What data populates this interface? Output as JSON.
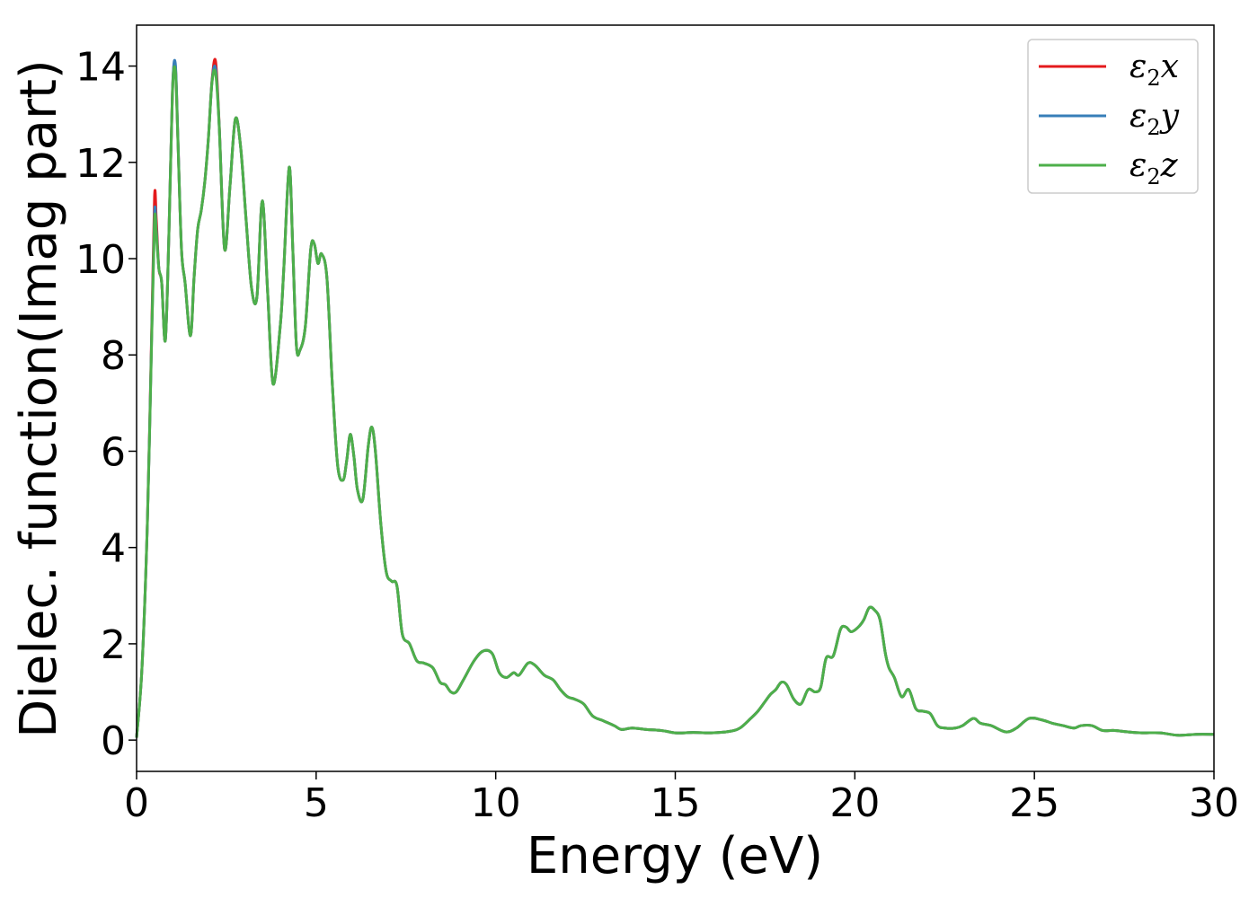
{
  "chart_data": {
    "type": "line",
    "title": "",
    "xlabel": "Energy (eV)",
    "ylabel": "Dielec. function(Imag part)",
    "xlim": [
      0,
      30
    ],
    "ylim": [
      -0.65,
      14.85
    ],
    "xticks": [
      0,
      5,
      10,
      15,
      20,
      25,
      30
    ],
    "yticks": [
      0,
      2,
      4,
      6,
      8,
      10,
      12,
      14
    ],
    "grid": false,
    "legend_position": "top-right",
    "series": [
      {
        "name": "ε₂x",
        "legend_parts": [
          "ε",
          "2",
          "x"
        ],
        "color": "#e41a1c",
        "x": [
          0,
          0.15,
          0.3,
          0.42,
          0.5,
          0.55,
          0.62,
          0.7,
          0.8,
          0.9,
          1.0,
          1.08,
          1.15,
          1.25,
          1.35,
          1.5,
          1.6,
          1.7,
          1.8,
          1.9,
          2.0,
          2.1,
          2.2,
          2.3,
          2.45,
          2.6,
          2.75,
          2.9,
          3.05,
          3.2,
          3.35,
          3.5,
          3.65,
          3.8,
          4.0,
          4.1,
          4.25,
          4.35,
          4.45,
          4.55,
          4.7,
          4.85,
          4.95,
          5.05,
          5.15,
          5.3,
          5.45,
          5.6,
          5.75,
          5.85,
          5.95,
          6.05,
          6.15,
          6.3,
          6.45,
          6.55,
          6.65,
          6.8,
          6.95,
          7.1,
          7.25,
          7.4,
          7.6,
          7.8,
          8.0,
          8.25,
          8.45,
          8.6,
          8.75,
          8.9,
          9.1,
          9.4,
          9.65,
          9.9,
          10.1,
          10.3,
          10.5,
          10.65,
          10.9,
          11.1,
          11.35,
          11.6,
          11.8,
          12.0,
          12.2,
          12.45,
          12.7,
          13.0,
          13.3,
          13.5,
          13.8,
          14.2,
          14.6,
          15.0,
          15.25,
          15.5,
          16.0,
          16.5,
          16.8,
          17.1,
          17.3,
          17.5,
          17.65,
          17.8,
          17.95,
          18.1,
          18.3,
          18.5,
          18.7,
          18.9,
          19.05,
          19.2,
          19.4,
          19.6,
          19.75,
          19.9,
          20.1,
          20.25,
          20.4,
          20.55,
          20.7,
          20.85,
          20.95,
          21.1,
          21.3,
          21.5,
          21.7,
          21.9,
          22.1,
          22.3,
          22.5,
          22.8,
          23.0,
          23.3,
          23.5,
          23.8,
          24.2,
          24.5,
          24.85,
          25.2,
          25.5,
          25.8,
          26.1,
          26.3,
          26.6,
          26.9,
          27.2,
          27.6,
          28.0,
          28.5,
          29.0,
          29.5,
          30.0
        ],
        "y": [
          0.05,
          1.5,
          4.5,
          8.5,
          11.3,
          10.8,
          9.8,
          9.5,
          8.3,
          10.5,
          13.5,
          14.0,
          12.5,
          10.2,
          9.5,
          8.4,
          9.6,
          10.6,
          11.0,
          11.6,
          12.5,
          13.7,
          14.1,
          12.8,
          10.2,
          11.5,
          12.9,
          12.3,
          10.8,
          9.4,
          9.2,
          11.2,
          9.3,
          7.4,
          8.6,
          9.8,
          11.9,
          10.2,
          8.2,
          8.1,
          8.6,
          10.2,
          10.3,
          9.9,
          10.1,
          9.6,
          7.4,
          5.7,
          5.4,
          5.8,
          6.35,
          5.9,
          5.2,
          5.0,
          6.1,
          6.5,
          6.0,
          4.5,
          3.5,
          3.3,
          3.2,
          2.2,
          2.0,
          1.65,
          1.6,
          1.5,
          1.2,
          1.15,
          1.0,
          1.0,
          1.25,
          1.65,
          1.85,
          1.8,
          1.4,
          1.3,
          1.4,
          1.35,
          1.6,
          1.55,
          1.35,
          1.25,
          1.05,
          0.9,
          0.85,
          0.75,
          0.5,
          0.4,
          0.3,
          0.22,
          0.25,
          0.22,
          0.2,
          0.15,
          0.15,
          0.16,
          0.15,
          0.18,
          0.25,
          0.45,
          0.6,
          0.8,
          0.95,
          1.05,
          1.2,
          1.15,
          0.85,
          0.75,
          1.05,
          1.0,
          1.1,
          1.7,
          1.75,
          2.3,
          2.35,
          2.25,
          2.35,
          2.5,
          2.75,
          2.7,
          2.5,
          1.8,
          1.5,
          1.3,
          0.9,
          1.05,
          0.65,
          0.6,
          0.55,
          0.3,
          0.25,
          0.25,
          0.3,
          0.45,
          0.35,
          0.3,
          0.17,
          0.25,
          0.45,
          0.42,
          0.35,
          0.3,
          0.25,
          0.3,
          0.3,
          0.2,
          0.2,
          0.17,
          0.15,
          0.15,
          0.1,
          0.12,
          0.12
        ],
        "peak_adjustments": [
          [
            0.5,
            0.0
          ],
          [
            1.08,
            0.0
          ],
          [
            2.2,
            0.0
          ]
        ]
      },
      {
        "name": "ε₂y",
        "legend_parts": [
          "ε",
          "2",
          "y"
        ],
        "color": "#377eb8",
        "peak_adjustments": [
          [
            0.5,
            -0.35
          ],
          [
            1.08,
            0.05
          ],
          [
            2.2,
            -0.15
          ]
        ]
      },
      {
        "name": "ε₂z",
        "legend_parts": [
          "ε",
          "2",
          "z"
        ],
        "color": "#4daf4a",
        "peak_adjustments": [
          [
            0.5,
            -0.5
          ],
          [
            1.08,
            -0.1
          ],
          [
            2.2,
            -0.25
          ]
        ]
      }
    ]
  }
}
